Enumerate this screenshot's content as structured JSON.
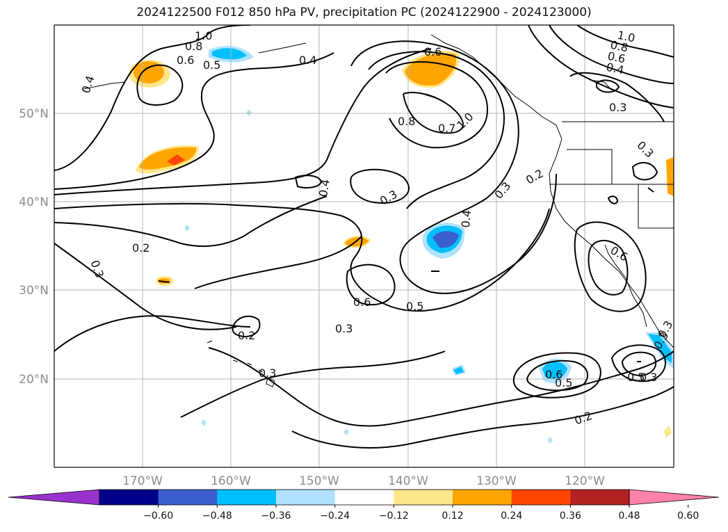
{
  "title": "2024122500 F012 850 hPa PV, precipitation PC (2024122900 - 2024123000)",
  "lat_labels": [
    "50°N",
    "40°N",
    "30°N",
    "20°N"
  ],
  "lon_labels": [
    "170°W",
    "160°W",
    "150°W",
    "140°W",
    "130°W",
    "120°W"
  ],
  "contour_labels": [
    "1.0",
    "0.8",
    "0.6",
    "0.5",
    "0.4",
    "0.4",
    "0.8",
    "0.7",
    "1.0",
    "0.6",
    "0.2",
    "0.3",
    "0.3",
    "0.3",
    "0.4",
    "0.2",
    "0.3",
    "0.4",
    "0.6",
    "0.5",
    "0.3",
    "0.2",
    "0.3",
    "0.6",
    "0.5",
    "0.6",
    "0.5",
    "0.2",
    "0.3",
    "1.0",
    "0.8",
    "0.6",
    "0.4",
    "0.3",
    "0.3",
    "0.3"
  ],
  "colorbar": {
    "ticks": [
      "−0.60",
      "−0.48",
      "−0.36",
      "−0.24",
      "−0.12",
      "0.12",
      "0.24",
      "0.36",
      "0.48",
      "0.60"
    ],
    "colors": [
      "#9932cc",
      "#00008b",
      "#3a5fcd",
      "#00bfff",
      "#b0e2ff",
      "#ffffff",
      "#ffe78c",
      "#ffa500",
      "#ff4500",
      "#b22222",
      "#ff82ab"
    ]
  },
  "legend_colors": {
    "orange": "#ffa500",
    "light_yellow": "#ffe78c",
    "red": "#ff4500",
    "deep_blue": "#3a5fcd",
    "sky_blue": "#00bfff",
    "pale_blue": "#b0e2ff"
  }
}
